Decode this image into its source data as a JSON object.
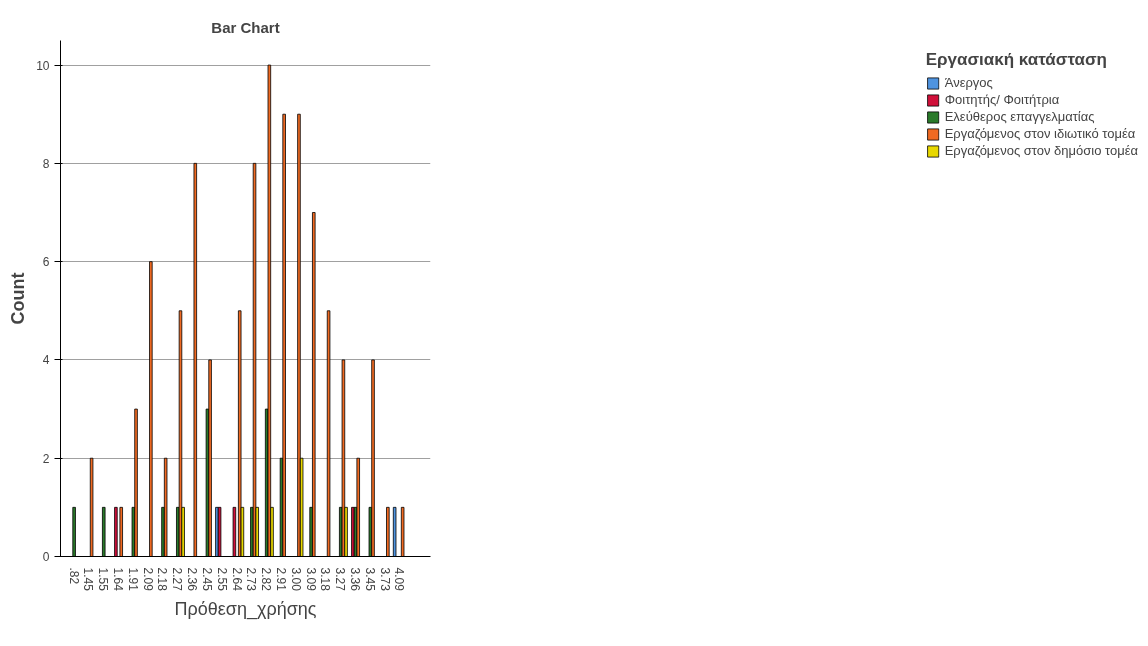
{
  "chart_data": {
    "type": "bar",
    "title": "Bar Chart",
    "xlabel": "Πρόθεση_χρήσης",
    "ylabel": "Count",
    "legend_title": "Εργασιακή κατάσταση",
    "categories": [
      ".82",
      "1.45",
      "1.55",
      "1.64",
      "1.91",
      "2.09",
      "2.18",
      "2.27",
      "2.36",
      "2.45",
      "2.55",
      "2.64",
      "2.73",
      "2.82",
      "2.91",
      "3.00",
      "3.09",
      "3.18",
      "3.27",
      "3.36",
      "3.45",
      "3.73",
      "4.09"
    ],
    "series": [
      {
        "name": "Άνεργος",
        "color": "#4f94e0",
        "values": [
          null,
          null,
          null,
          null,
          null,
          null,
          null,
          null,
          null,
          null,
          1,
          null,
          null,
          null,
          null,
          null,
          null,
          null,
          null,
          null,
          null,
          null,
          1
        ]
      },
      {
        "name": "Φοιτητής/ Φοιτήτρια",
        "color": "#d0103a",
        "values": [
          null,
          null,
          null,
          1,
          null,
          null,
          null,
          null,
          null,
          null,
          1,
          1,
          null,
          null,
          null,
          null,
          null,
          null,
          null,
          1,
          null,
          null,
          null
        ]
      },
      {
        "name": "Ελεύθερος επαγγελματίας",
        "color": "#2a7a2a",
        "values": [
          1,
          null,
          1,
          null,
          1,
          null,
          1,
          1,
          null,
          3,
          null,
          null,
          1,
          3,
          2,
          null,
          1,
          null,
          1,
          1,
          1,
          null,
          null
        ]
      },
      {
        "name": "Εργαζόμενος στον ιδιωτικό τομέα",
        "color": "#f06a22",
        "values": [
          null,
          2,
          null,
          1,
          3,
          6,
          2,
          5,
          8,
          4,
          null,
          5,
          8,
          10,
          9,
          9,
          7,
          5,
          4,
          2,
          4,
          1,
          1
        ]
      },
      {
        "name": "Εργαζόμενος στον δημόσιο τομέα",
        "color": "#e8d800",
        "values": [
          null,
          null,
          null,
          null,
          null,
          null,
          null,
          1,
          null,
          null,
          null,
          1,
          1,
          1,
          null,
          2,
          null,
          null,
          1,
          null,
          null,
          null,
          null
        ]
      }
    ],
    "ylim": [
      0,
      10.5
    ],
    "yticks": [
      0,
      2,
      4,
      6,
      8,
      10
    ],
    "grid": "y",
    "legend": "top right"
  }
}
